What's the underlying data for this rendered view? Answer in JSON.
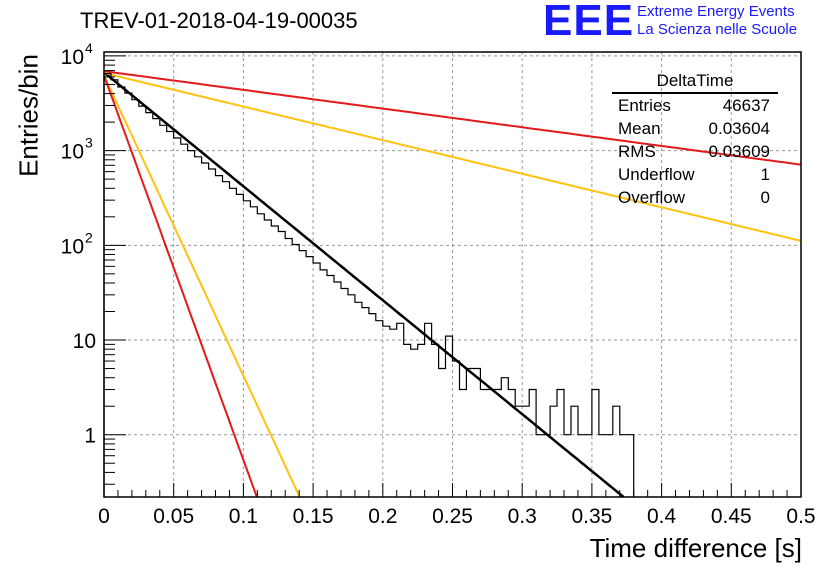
{
  "header": {
    "title": "TREV-01-2018-04-19-00035",
    "logo": "EEE",
    "logo_line1": "Extreme Energy Events",
    "logo_line2": "La Scienza nelle Scuole"
  },
  "stats_box": {
    "title": "DeltaTime",
    "rows": [
      {
        "label": "Entries",
        "value": "46637"
      },
      {
        "label": "Mean",
        "value": "0.03604"
      },
      {
        "label": "RMS",
        "value": "0.03609"
      },
      {
        "label": "Underflow",
        "value": "1"
      },
      {
        "label": "Overflow",
        "value": "0"
      }
    ]
  },
  "chart_data": {
    "type": "line",
    "title": "TREV-01-2018-04-19-00035",
    "xlabel": "Time difference [s]",
    "ylabel": "Entries/bin",
    "xlim": [
      0,
      0.5
    ],
    "ylim": [
      0.22,
      11000
    ],
    "yscale": "log",
    "grid": true,
    "x_ticks": [
      "0",
      "0.05",
      "0.1",
      "0.15",
      "0.2",
      "0.25",
      "0.3",
      "0.35",
      "0.4",
      "0.45",
      "0.5"
    ],
    "y_ticks": [
      {
        "value": 1,
        "label": "1"
      },
      {
        "value": 10,
        "label": "10"
      },
      {
        "value": 100,
        "label": "10",
        "exp": "2"
      },
      {
        "value": 1000,
        "label": "10",
        "exp": "3"
      },
      {
        "value": 10000,
        "label": "10",
        "exp": "4"
      }
    ],
    "histogram": {
      "bin_width": 0.005,
      "values": [
        6500,
        5600,
        4700,
        4050,
        3450,
        2950,
        2520,
        2180,
        1850,
        1590,
        1360,
        1170,
        1000,
        860,
        740,
        640,
        545,
        470,
        400,
        345,
        295,
        255,
        215,
        185,
        160,
        140,
        118,
        102,
        88,
        76,
        65,
        55,
        48,
        41,
        35,
        30,
        25,
        22,
        19,
        16,
        14,
        13,
        15,
        9,
        8,
        9,
        15,
        9,
        5,
        11,
        6,
        3,
        5,
        5,
        3,
        3,
        3,
        4,
        3,
        2,
        2,
        3,
        1,
        1,
        2,
        3,
        1,
        2,
        1,
        1,
        3,
        1,
        1,
        2,
        1,
        1
      ]
    },
    "series": [
      {
        "color": "#000000",
        "y0": 6700,
        "tau": 0.0361
      },
      {
        "color": "#e31a1c",
        "y0": 6900,
        "tau": 0.22
      },
      {
        "color": "#ffc20e",
        "y0": 6600,
        "tau": 0.1225
      },
      {
        "color": "#ffc20e",
        "y0": 6200,
        "tau": 0.0137
      },
      {
        "color": "#e31a1c",
        "y0": 6200,
        "tau": 0.0107
      }
    ]
  }
}
